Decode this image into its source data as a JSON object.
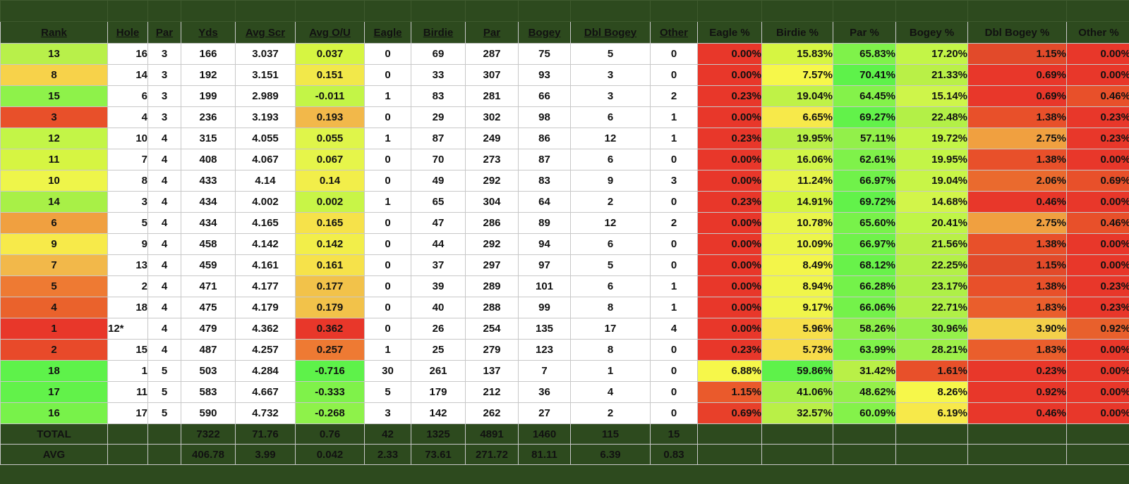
{
  "headers": [
    "Rank",
    "Hole",
    "Par",
    "Yds",
    "Avg Scr",
    "Avg O/U",
    "Eagle",
    "Birdie",
    "Par",
    "Bogey",
    "Dbl Bogey",
    "Other",
    "Eagle %",
    "Birdie %",
    "Par %",
    "Bogey %",
    "Dbl Bogey %",
    "Other %"
  ],
  "rows": [
    {
      "rank": "13",
      "hole": "16",
      "par": "3",
      "yds": "166",
      "avg_scr": "3.037",
      "avg_ou": "0.037",
      "eagle": "0",
      "birdie": "69",
      "par_count": "287",
      "bogey": "75",
      "dbl_bogey": "5",
      "other": "0",
      "eagle_pct": "0.00%",
      "birdie_pct": "15.83%",
      "par_pct": "65.83%",
      "bogey_pct": "17.20%",
      "dbl_bogey_pct": "1.15%",
      "other_pct": "0.00%",
      "rank_color": "#b8f04a",
      "ou_color": "#d6f542",
      "colors": [
        "#e8372a",
        "#d6f542",
        "#7ff24a",
        "#c3f547",
        "#e24a2a",
        "#e8372a"
      ],
      "group_start": false
    },
    {
      "rank": "8",
      "hole": "14",
      "par": "3",
      "yds": "192",
      "avg_scr": "3.151",
      "avg_ou": "0.151",
      "eagle": "0",
      "birdie": "33",
      "par_count": "307",
      "bogey": "93",
      "dbl_bogey": "3",
      "other": "0",
      "eagle_pct": "0.00%",
      "birdie_pct": "7.57%",
      "par_pct": "70.41%",
      "bogey_pct": "21.33%",
      "dbl_bogey_pct": "0.69%",
      "other_pct": "0.00%",
      "rank_color": "#f7d24a",
      "ou_color": "#f2e84a",
      "colors": [
        "#e8372a",
        "#f6f74a",
        "#5ef24a",
        "#b9f047",
        "#e8372a",
        "#e8372a"
      ],
      "group_start": false
    },
    {
      "rank": "15",
      "hole": "6",
      "par": "3",
      "yds": "199",
      "avg_scr": "2.989",
      "avg_ou": "-0.011",
      "eagle": "1",
      "birdie": "83",
      "par_count": "281",
      "bogey": "66",
      "dbl_bogey": "3",
      "other": "2",
      "eagle_pct": "0.23%",
      "birdie_pct": "19.04%",
      "par_pct": "64.45%",
      "bogey_pct": "15.14%",
      "dbl_bogey_pct": "0.69%",
      "other_pct": "0.46%",
      "rank_color": "#8ef24a",
      "ou_color": "#c3f547",
      "colors": [
        "#e8372a",
        "#bff247",
        "#84f24a",
        "#cef54a",
        "#e8372a",
        "#e8502a"
      ],
      "group_start": false
    },
    {
      "rank": "3",
      "hole": "4",
      "par": "3",
      "yds": "236",
      "avg_scr": "3.193",
      "avg_ou": "0.193",
      "eagle": "0",
      "birdie": "29",
      "par_count": "302",
      "bogey": "98",
      "dbl_bogey": "6",
      "other": "1",
      "eagle_pct": "0.00%",
      "birdie_pct": "6.65%",
      "par_pct": "69.27%",
      "bogey_pct": "22.48%",
      "dbl_bogey_pct": "1.38%",
      "other_pct": "0.23%",
      "rank_color": "#e8502a",
      "ou_color": "#f2b84a",
      "colors": [
        "#e8372a",
        "#f7e94a",
        "#62f24a",
        "#b3f047",
        "#e8502a",
        "#e8372a"
      ],
      "group_start": false
    },
    {
      "rank": "12",
      "hole": "10",
      "par": "4",
      "yds": "315",
      "avg_scr": "4.055",
      "avg_ou": "0.055",
      "eagle": "1",
      "birdie": "87",
      "par_count": "249",
      "bogey": "86",
      "dbl_bogey": "12",
      "other": "1",
      "eagle_pct": "0.23%",
      "birdie_pct": "19.95%",
      "par_pct": "57.11%",
      "bogey_pct": "19.72%",
      "dbl_bogey_pct": "2.75%",
      "other_pct": "0.23%",
      "rank_color": "#c3f547",
      "ou_color": "#dff54a",
      "colors": [
        "#e8372a",
        "#b9f047",
        "#92f04a",
        "#c3f547",
        "#f0a040",
        "#e8372a"
      ],
      "group_start": true
    },
    {
      "rank": "11",
      "hole": "7",
      "par": "4",
      "yds": "408",
      "avg_scr": "4.067",
      "avg_ou": "0.067",
      "eagle": "0",
      "birdie": "70",
      "par_count": "273",
      "bogey": "87",
      "dbl_bogey": "6",
      "other": "0",
      "eagle_pct": "0.00%",
      "birdie_pct": "16.06%",
      "par_pct": "62.61%",
      "bogey_pct": "19.95%",
      "dbl_bogey_pct": "1.38%",
      "other_pct": "0.00%",
      "rank_color": "#d6f542",
      "ou_color": "#e6f54a",
      "colors": [
        "#e8372a",
        "#d0f547",
        "#7ff24a",
        "#c3f547",
        "#e8502a",
        "#e8372a"
      ],
      "group_start": true
    },
    {
      "rank": "10",
      "hole": "8",
      "par": "4",
      "yds": "433",
      "avg_scr": "4.14",
      "avg_ou": "0.14",
      "eagle": "0",
      "birdie": "49",
      "par_count": "292",
      "bogey": "83",
      "dbl_bogey": "9",
      "other": "3",
      "eagle_pct": "0.00%",
      "birdie_pct": "11.24%",
      "par_pct": "66.97%",
      "bogey_pct": "19.04%",
      "dbl_bogey_pct": "2.06%",
      "other_pct": "0.69%",
      "rank_color": "#eef54a",
      "ou_color": "#f2ee4a",
      "colors": [
        "#e8372a",
        "#e6f54a",
        "#70f24a",
        "#c8f547",
        "#ea6a2e",
        "#e8502a"
      ],
      "group_start": false
    },
    {
      "rank": "14",
      "hole": "3",
      "par": "4",
      "yds": "434",
      "avg_scr": "4.002",
      "avg_ou": "0.002",
      "eagle": "1",
      "birdie": "65",
      "par_count": "304",
      "bogey": "64",
      "dbl_bogey": "2",
      "other": "0",
      "eagle_pct": "0.23%",
      "birdie_pct": "14.91%",
      "par_pct": "69.72%",
      "bogey_pct": "14.68%",
      "dbl_bogey_pct": "0.46%",
      "other_pct": "0.00%",
      "rank_color": "#a8f047",
      "ou_color": "#c8f547",
      "colors": [
        "#e8372a",
        "#d6f542",
        "#62f24a",
        "#d2f54a",
        "#e8372a",
        "#e8372a"
      ],
      "group_start": false
    },
    {
      "rank": "6",
      "hole": "5",
      "par": "4",
      "yds": "434",
      "avg_scr": "4.165",
      "avg_ou": "0.165",
      "eagle": "0",
      "birdie": "47",
      "par_count": "286",
      "bogey": "89",
      "dbl_bogey": "12",
      "other": "2",
      "eagle_pct": "0.00%",
      "birdie_pct": "10.78%",
      "par_pct": "65.60%",
      "bogey_pct": "20.41%",
      "dbl_bogey_pct": "2.75%",
      "other_pct": "0.46%",
      "rank_color": "#f0a040",
      "ou_color": "#f6e24a",
      "colors": [
        "#e8372a",
        "#e9f54a",
        "#78f24a",
        "#c0f547",
        "#f0a040",
        "#e8502a"
      ],
      "group_start": false
    },
    {
      "rank": "9",
      "hole": "9",
      "par": "4",
      "yds": "458",
      "avg_scr": "4.142",
      "avg_ou": "0.142",
      "eagle": "0",
      "birdie": "44",
      "par_count": "292",
      "bogey": "94",
      "dbl_bogey": "6",
      "other": "0",
      "eagle_pct": "0.00%",
      "birdie_pct": "10.09%",
      "par_pct": "66.97%",
      "bogey_pct": "21.56%",
      "dbl_bogey_pct": "1.38%",
      "other_pct": "0.00%",
      "rank_color": "#f7ea4a",
      "ou_color": "#f2ee4a",
      "colors": [
        "#e8372a",
        "#ecf54a",
        "#70f24a",
        "#b9f047",
        "#e8502a",
        "#e8372a"
      ],
      "group_start": true
    },
    {
      "rank": "7",
      "hole": "13",
      "par": "4",
      "yds": "459",
      "avg_scr": "4.161",
      "avg_ou": "0.161",
      "eagle": "0",
      "birdie": "37",
      "par_count": "297",
      "bogey": "97",
      "dbl_bogey": "5",
      "other": "0",
      "eagle_pct": "0.00%",
      "birdie_pct": "8.49%",
      "par_pct": "68.12%",
      "bogey_pct": "22.25%",
      "dbl_bogey_pct": "1.15%",
      "other_pct": "0.00%",
      "rank_color": "#f2b84a",
      "ou_color": "#f6e24a",
      "colors": [
        "#e8372a",
        "#f3f54a",
        "#68f24a",
        "#b3f047",
        "#e24a2a",
        "#e8372a"
      ],
      "group_start": false
    },
    {
      "rank": "5",
      "hole": "2",
      "par": "4",
      "yds": "471",
      "avg_scr": "4.177",
      "avg_ou": "0.177",
      "eagle": "0",
      "birdie": "39",
      "par_count": "289",
      "bogey": "101",
      "dbl_bogey": "6",
      "other": "1",
      "eagle_pct": "0.00%",
      "birdie_pct": "8.94%",
      "par_pct": "66.28%",
      "bogey_pct": "23.17%",
      "dbl_bogey_pct": "1.38%",
      "other_pct": "0.23%",
      "rank_color": "#ee7a33",
      "ou_color": "#f2c24a",
      "colors": [
        "#e8372a",
        "#f0f54a",
        "#74f24a",
        "#aef047",
        "#e8502a",
        "#e8372a"
      ],
      "group_start": false
    },
    {
      "rank": "4",
      "hole": "18",
      "par": "4",
      "yds": "475",
      "avg_scr": "4.179",
      "avg_ou": "0.179",
      "eagle": "0",
      "birdie": "40",
      "par_count": "288",
      "bogey": "99",
      "dbl_bogey": "8",
      "other": "1",
      "eagle_pct": "0.00%",
      "birdie_pct": "9.17%",
      "par_pct": "66.06%",
      "bogey_pct": "22.71%",
      "dbl_bogey_pct": "1.83%",
      "other_pct": "0.23%",
      "rank_color": "#ea622c",
      "ou_color": "#f2c24a",
      "colors": [
        "#e8372a",
        "#f0f54a",
        "#74f24a",
        "#b0f047",
        "#ea5e2c",
        "#e8372a"
      ],
      "group_start": false
    },
    {
      "rank": "1",
      "hole": "12*",
      "par": "4",
      "yds": "479",
      "avg_scr": "4.362",
      "avg_ou": "0.362",
      "eagle": "0",
      "birdie": "26",
      "par_count": "254",
      "bogey": "135",
      "dbl_bogey": "17",
      "other": "4",
      "eagle_pct": "0.00%",
      "birdie_pct": "5.96%",
      "par_pct": "58.26%",
      "bogey_pct": "30.96%",
      "dbl_bogey_pct": "3.90%",
      "other_pct": "0.92%",
      "rank_color": "#e8372a",
      "ou_color": "#e8372a",
      "colors": [
        "#e8372a",
        "#f7df4a",
        "#8ef04a",
        "#94f04a",
        "#f4d04a",
        "#e8602c"
      ],
      "group_start": false
    },
    {
      "rank": "2",
      "hole": "15",
      "par": "4",
      "yds": "487",
      "avg_scr": "4.257",
      "avg_ou": "0.257",
      "eagle": "1",
      "birdie": "25",
      "par_count": "279",
      "bogey": "123",
      "dbl_bogey": "8",
      "other": "0",
      "eagle_pct": "0.23%",
      "birdie_pct": "5.73%",
      "par_pct": "63.99%",
      "bogey_pct": "28.21%",
      "dbl_bogey_pct": "1.83%",
      "other_pct": "0.00%",
      "rank_color": "#e84a2a",
      "ou_color": "#ee7a33",
      "colors": [
        "#e8372a",
        "#f7dc4a",
        "#7ff24a",
        "#9ef04a",
        "#ea5e2c",
        "#e8372a"
      ],
      "group_start": false
    },
    {
      "rank": "18",
      "hole": "1",
      "par": "5",
      "yds": "503",
      "avg_scr": "4.284",
      "avg_ou": "-0.716",
      "eagle": "30",
      "birdie": "261",
      "par_count": "137",
      "bogey": "7",
      "dbl_bogey": "1",
      "other": "0",
      "eagle_pct": "6.88%",
      "birdie_pct": "59.86%",
      "par_pct": "31.42%",
      "bogey_pct": "1.61%",
      "dbl_bogey_pct": "0.23%",
      "other_pct": "0.00%",
      "rank_color": "#5ef24a",
      "ou_color": "#5ef24a",
      "colors": [
        "#f6f74a",
        "#5ef24a",
        "#b9f047",
        "#e8502a",
        "#e8372a",
        "#e8372a"
      ],
      "group_start": true
    },
    {
      "rank": "17",
      "hole": "11",
      "par": "5",
      "yds": "583",
      "avg_scr": "4.667",
      "avg_ou": "-0.333",
      "eagle": "5",
      "birdie": "179",
      "par_count": "212",
      "bogey": "36",
      "dbl_bogey": "4",
      "other": "0",
      "eagle_pct": "1.15%",
      "birdie_pct": "41.06%",
      "par_pct": "48.62%",
      "bogey_pct": "8.26%",
      "dbl_bogey_pct": "0.92%",
      "other_pct": "0.00%",
      "rank_color": "#62f24a",
      "ou_color": "#7ff24a",
      "colors": [
        "#ea5a2c",
        "#a8f047",
        "#94f04a",
        "#f6f74a",
        "#e8372a",
        "#e8372a"
      ],
      "group_start": false
    },
    {
      "rank": "16",
      "hole": "17",
      "par": "5",
      "yds": "590",
      "avg_scr": "4.732",
      "avg_ou": "-0.268",
      "eagle": "3",
      "birdie": "142",
      "par_count": "262",
      "bogey": "27",
      "dbl_bogey": "2",
      "other": "0",
      "eagle_pct": "0.69%",
      "birdie_pct": "32.57%",
      "par_pct": "60.09%",
      "bogey_pct": "6.19%",
      "dbl_bogey_pct": "0.46%",
      "other_pct": "0.00%",
      "rank_color": "#78f24a",
      "ou_color": "#8ef24a",
      "colors": [
        "#e8402a",
        "#b9f047",
        "#84f24a",
        "#f7e94a",
        "#e8372a",
        "#e8372a"
      ],
      "group_start": false
    }
  ],
  "totals": {
    "label": "TOTAL",
    "yds": "7322",
    "avg_scr": "71.76",
    "avg_ou": "0.76",
    "eagle": "42",
    "birdie": "1325",
    "par_count": "4891",
    "bogey": "1460",
    "dbl_bogey": "115",
    "other": "15"
  },
  "averages": {
    "label": "AVG",
    "yds": "406.78",
    "avg_scr": "3.99",
    "avg_ou": "0.042",
    "eagle": "2.33",
    "birdie": "73.61",
    "par_count": "271.72",
    "bogey": "81.11",
    "dbl_bogey": "6.39",
    "other": "0.83"
  }
}
